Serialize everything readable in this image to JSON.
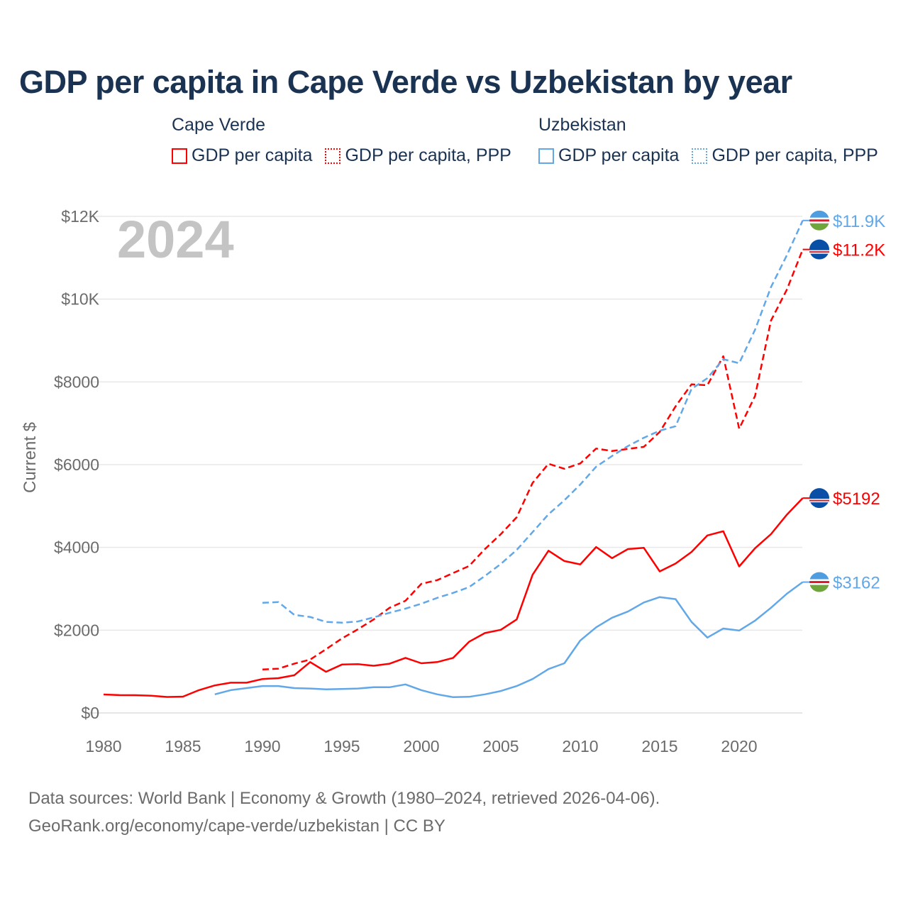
{
  "chart_data": {
    "type": "line",
    "title": "GDP per capita in Cape Verde vs Uzbekistan by year",
    "ylabel": "Current $",
    "xlabel": "",
    "xlim": [
      1980,
      2024
    ],
    "ylim": [
      0,
      12000
    ],
    "x_ticks": [
      1980,
      1985,
      1990,
      1995,
      2000,
      2005,
      2010,
      2015,
      2020
    ],
    "x_tick_labels": [
      "1980",
      "1985",
      "1990",
      "1995",
      "2000",
      "2005",
      "2010",
      "2015",
      "2020"
    ],
    "y_ticks": [
      0,
      2000,
      4000,
      6000,
      8000,
      10000,
      12000
    ],
    "y_tick_labels": [
      "$0",
      "$2000",
      "$4000",
      "$6000",
      "$8000",
      "$10K",
      "$12K"
    ],
    "grid": true,
    "year_label": "2024",
    "legend": {
      "placement": "top",
      "groups": [
        {
          "country": "Cape Verde",
          "items": [
            "GDP per capita",
            "GDP per capita, PPP"
          ]
        },
        {
          "country": "Uzbekistan",
          "items": [
            "GDP per capita",
            "GDP per capita, PPP"
          ]
        }
      ]
    },
    "series": [
      {
        "name": "Cape Verde GDP per capita",
        "color": "#ff0000",
        "dash": false,
        "start": 1980,
        "end_label": "$5192",
        "values": [
          446,
          430,
          428,
          415,
          385,
          395,
          550,
          665,
          730,
          730,
          820,
          840,
          910,
          1230,
          995,
          1170,
          1180,
          1140,
          1190,
          1330,
          1200,
          1230,
          1330,
          1720,
          1930,
          2010,
          2260,
          3340,
          3920,
          3670,
          3590,
          4010,
          3740,
          3960,
          3990,
          3420,
          3610,
          3890,
          4290,
          4390,
          3540,
          3980,
          4320,
          4790,
          5192
        ]
      },
      {
        "name": "Cape Verde GDP per capita, PPP",
        "color": "#ff0000",
        "dash": true,
        "start": 1990,
        "end_label": "$11.2K",
        "values": [
          1050,
          1070,
          1190,
          1290,
          1540,
          1800,
          2020,
          2260,
          2540,
          2710,
          3120,
          3210,
          3380,
          3550,
          3960,
          4320,
          4730,
          5560,
          6020,
          5900,
          6030,
          6390,
          6330,
          6380,
          6430,
          6790,
          7410,
          7940,
          7920,
          8620,
          6870,
          7660,
          9480,
          10230,
          11200
        ]
      },
      {
        "name": "Uzbekistan GDP per capita",
        "color": "#62a8e8",
        "dash": false,
        "start": 1987,
        "end_label": "$3162",
        "values": [
          450,
          550,
          600,
          650,
          650,
          600,
          590,
          570,
          580,
          590,
          620,
          620,
          690,
          550,
          450,
          380,
          390,
          450,
          530,
          650,
          820,
          1060,
          1200,
          1750,
          2070,
          2300,
          2450,
          2670,
          2800,
          2750,
          2200,
          1820,
          2040,
          1990,
          2230,
          2540,
          2880,
          3162
        ]
      },
      {
        "name": "Uzbekistan GDP per capita, PPP",
        "color": "#62a8e8",
        "dash": true,
        "start": 1990,
        "end_label": "$11.9K",
        "values": [
          2660,
          2680,
          2370,
          2320,
          2200,
          2180,
          2210,
          2310,
          2420,
          2520,
          2640,
          2780,
          2900,
          3040,
          3310,
          3600,
          3940,
          4370,
          4800,
          5140,
          5520,
          5950,
          6210,
          6450,
          6650,
          6820,
          6930,
          7830,
          8090,
          8550,
          8450,
          9260,
          10290,
          11060,
          11900
        ]
      }
    ]
  },
  "legend": {
    "cv_title": "Cape Verde",
    "uz_title": "Uzbekistan",
    "cv_gdp": "GDP per capita",
    "cv_ppp": "GDP per capita, PPP",
    "uz_gdp": "GDP per capita",
    "uz_ppp": "GDP per capita, PPP"
  },
  "footer": {
    "line1": "Data sources: World Bank | Economy & Growth (1980–2024, retrieved 2026-04-06).",
    "line2": "GeoRank.org/economy/cape-verde/uzbekistan | CC BY"
  }
}
